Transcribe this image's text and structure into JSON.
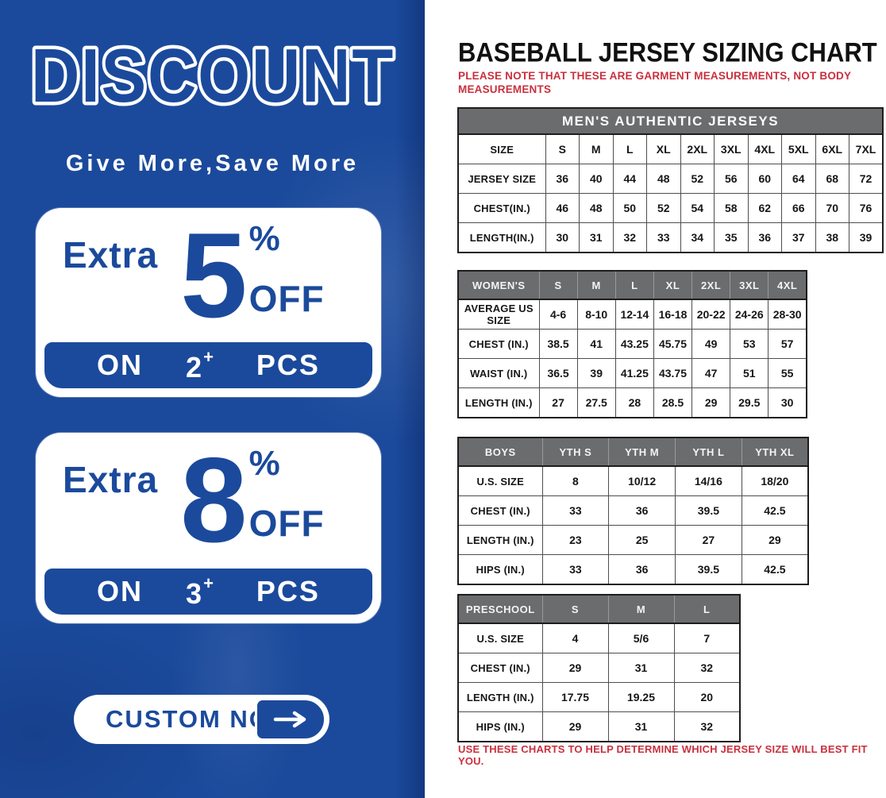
{
  "left_panel": {
    "title": "DISCOUNT",
    "tagline": "Give More,Save More",
    "offers": [
      {
        "prefix": "Extra",
        "percent": "5",
        "percent_sign": "%",
        "off_label": "OFF",
        "on_label": "ON",
        "quantity": "2",
        "plus_sign": "+",
        "pcs_label": "PCS"
      },
      {
        "prefix": "Extra",
        "percent": "8",
        "percent_sign": "%",
        "off_label": "OFF",
        "on_label": "ON",
        "quantity": "3",
        "plus_sign": "+",
        "pcs_label": "PCS"
      }
    ],
    "cta_button": {
      "label": "CUSTOM NOW",
      "icon": "arrow-right-icon"
    },
    "colors": {
      "background_blue": "#1b4a9c",
      "text_blue": "#1b4a9c",
      "band_text": "#ffffff"
    }
  },
  "sizing_chart": {
    "title": "BASEBALL JERSEY SIZING CHART",
    "note": "PLEASE NOTE THAT THESE ARE GARMENT MEASUREMENTS, NOT BODY MEASUREMENTS",
    "footer_note": "USE THESE CHARTS TO HELP DETERMINE WHICH JERSEY SIZE WILL BEST FIT YOU.",
    "colors": {
      "note_red": "#c9303e",
      "header_gray": "#6b6c6e"
    },
    "tables": [
      {
        "id": "mens",
        "banner": "MEN'S AUTHENTIC JERSEYS",
        "rows": [
          {
            "label": "SIZE",
            "values": [
              "S",
              "M",
              "L",
              "XL",
              "2XL",
              "3XL",
              "4XL",
              "5XL",
              "6XL",
              "7XL"
            ]
          },
          {
            "label": "JERSEY SIZE",
            "values": [
              "36",
              "40",
              "44",
              "48",
              "52",
              "56",
              "60",
              "64",
              "68",
              "72"
            ]
          },
          {
            "label": "CHEST(IN.)",
            "values": [
              "46",
              "48",
              "50",
              "52",
              "54",
              "58",
              "62",
              "66",
              "70",
              "76"
            ]
          },
          {
            "label": "LENGTH(IN.)",
            "values": [
              "30",
              "31",
              "32",
              "33",
              "34",
              "35",
              "36",
              "37",
              "38",
              "39"
            ]
          }
        ]
      },
      {
        "id": "womens",
        "header_label": "WOMEN'S",
        "header_cells": [
          "S",
          "M",
          "L",
          "XL",
          "2XL",
          "3XL",
          "4XL"
        ],
        "rows": [
          {
            "label": "AVERAGE US SIZE",
            "values": [
              "4-6",
              "8-10",
              "12-14",
              "16-18",
              "20-22",
              "24-26",
              "28-30"
            ]
          },
          {
            "label": "CHEST (IN.)",
            "values": [
              "38.5",
              "41",
              "43.25",
              "45.75",
              "49",
              "53",
              "57"
            ]
          },
          {
            "label": "WAIST (IN.)",
            "values": [
              "36.5",
              "39",
              "41.25",
              "43.75",
              "47",
              "51",
              "55"
            ]
          },
          {
            "label": "LENGTH (IN.)",
            "values": [
              "27",
              "27.5",
              "28",
              "28.5",
              "29",
              "29.5",
              "30"
            ]
          }
        ]
      },
      {
        "id": "boys",
        "header_label": "BOYS",
        "header_cells": [
          "YTH S",
          "YTH M",
          "YTH L",
          "YTH XL"
        ],
        "rows": [
          {
            "label": "U.S. SIZE",
            "values": [
              "8",
              "10/12",
              "14/16",
              "18/20"
            ]
          },
          {
            "label": "CHEST (IN.)",
            "values": [
              "33",
              "36",
              "39.5",
              "42.5"
            ]
          },
          {
            "label": "LENGTH (IN.)",
            "values": [
              "23",
              "25",
              "27",
              "29"
            ]
          },
          {
            "label": "HIPS (IN.)",
            "values": [
              "33",
              "36",
              "39.5",
              "42.5"
            ]
          }
        ]
      },
      {
        "id": "preschool",
        "header_label": "PRESCHOOL",
        "header_cells": [
          "S",
          "M",
          "L"
        ],
        "rows": [
          {
            "label": "U.S. SIZE",
            "values": [
              "4",
              "5/6",
              "7"
            ]
          },
          {
            "label": "CHEST (IN.)",
            "values": [
              "29",
              "31",
              "32"
            ]
          },
          {
            "label": "LENGTH (IN.)",
            "values": [
              "17.75",
              "19.25",
              "20"
            ]
          },
          {
            "label": "HIPS (IN.)",
            "values": [
              "29",
              "31",
              "32"
            ]
          }
        ]
      }
    ]
  }
}
